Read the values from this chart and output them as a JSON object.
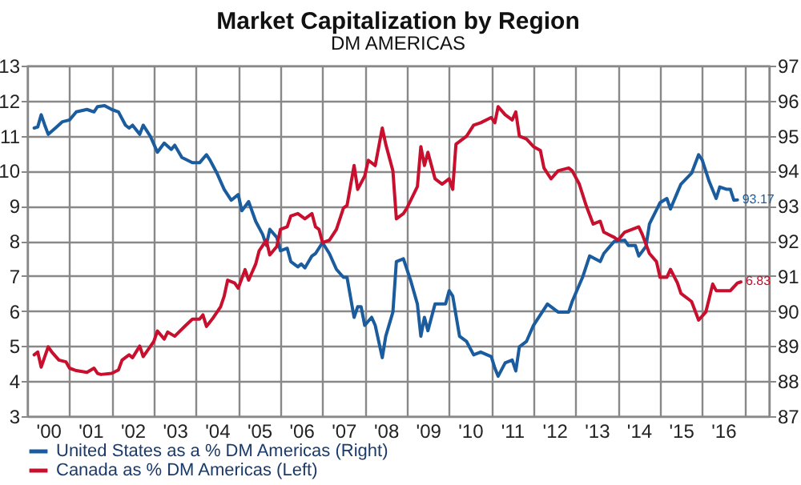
{
  "chart_data": {
    "type": "line",
    "title": "Market Capitalization by Region",
    "subtitle": "DM AMERICAS",
    "xlim": [
      "2000-01",
      "2017-08"
    ],
    "xticks": [
      {
        "value": "2000-07",
        "label": "'00"
      },
      {
        "value": "2001-07",
        "label": "'01"
      },
      {
        "value": "2002-07",
        "label": "'02"
      },
      {
        "value": "2003-07",
        "label": "'03"
      },
      {
        "value": "2004-07",
        "label": "'04"
      },
      {
        "value": "2005-07",
        "label": "'05"
      },
      {
        "value": "2006-07",
        "label": "'06"
      },
      {
        "value": "2007-07",
        "label": "'07"
      },
      {
        "value": "2008-07",
        "label": "'08"
      },
      {
        "value": "2009-07",
        "label": "'09"
      },
      {
        "value": "2010-07",
        "label": "'10"
      },
      {
        "value": "2011-07",
        "label": "'11"
      },
      {
        "value": "2012-07",
        "label": "'12"
      },
      {
        "value": "2013-07",
        "label": "'13"
      },
      {
        "value": "2014-07",
        "label": "'14"
      },
      {
        "value": "2015-07",
        "label": "'15"
      },
      {
        "value": "2016-07",
        "label": "'16"
      },
      {
        "value": "2001-01",
        "label": null
      },
      {
        "value": "2002-01",
        "label": null
      },
      {
        "value": "2003-01",
        "label": null
      },
      {
        "value": "2004-01",
        "label": null
      },
      {
        "value": "2005-01",
        "label": null
      },
      {
        "value": "2006-01",
        "label": null
      },
      {
        "value": "2007-01",
        "label": null
      },
      {
        "value": "2008-01",
        "label": null
      },
      {
        "value": "2009-01",
        "label": null
      },
      {
        "value": "2010-01",
        "label": null
      },
      {
        "value": "2011-01",
        "label": null
      },
      {
        "value": "2012-01",
        "label": null
      },
      {
        "value": "2013-01",
        "label": null
      },
      {
        "value": "2014-01",
        "label": null
      },
      {
        "value": "2015-01",
        "label": null
      },
      {
        "value": "2016-01",
        "label": null
      },
      {
        "value": "2017-01",
        "label": null
      }
    ],
    "ylim": [
      3,
      13
    ],
    "yticks": [
      3,
      4,
      5,
      6,
      7,
      8,
      9,
      10,
      11,
      12,
      13
    ],
    "y2lim": [
      87,
      97
    ],
    "y2ticks": [
      87,
      88,
      89,
      90,
      91,
      92,
      93,
      94,
      95,
      96,
      97
    ],
    "grid": true,
    "legend": "bottom",
    "series": [
      {
        "name": "United States as a % DM Americas  (Right)",
        "color": "#1a5c9e",
        "axis": "y2",
        "x": [
          "2000-03",
          "2000-04",
          "2000-05",
          "2000-06",
          "2000-07",
          "2000-09",
          "2000-11",
          "2001-01",
          "2001-03",
          "2001-06",
          "2001-08",
          "2001-09",
          "2001-11",
          "2002-01",
          "2002-03",
          "2002-05",
          "2002-06",
          "2002-07",
          "2002-09",
          "2002-10",
          "2002-12",
          "2003-02",
          "2003-04",
          "2003-06",
          "2003-07",
          "2003-09",
          "2003-12",
          "2004-02",
          "2004-04",
          "2004-05",
          "2004-07",
          "2004-09",
          "2004-11",
          "2005-01",
          "2005-02",
          "2005-04",
          "2005-06",
          "2005-08",
          "2005-09",
          "2005-10",
          "2005-12",
          "2006-01",
          "2006-03",
          "2006-04",
          "2006-06",
          "2006-07",
          "2006-08",
          "2006-10",
          "2006-11",
          "2007-01",
          "2007-03",
          "2007-05",
          "2007-07",
          "2007-08",
          "2007-10",
          "2007-11",
          "2007-12",
          "2008-01",
          "2008-03",
          "2008-04",
          "2008-06",
          "2008-07",
          "2008-09",
          "2008-10",
          "2008-12",
          "2009-02",
          "2009-04",
          "2009-05",
          "2009-06",
          "2009-07",
          "2009-09",
          "2009-12",
          "2010-01",
          "2010-02",
          "2010-04",
          "2010-06",
          "2010-08",
          "2010-10",
          "2011-01",
          "2011-02",
          "2011-03",
          "2011-05",
          "2011-07",
          "2011-08",
          "2011-09",
          "2011-11",
          "2012-01",
          "2012-03",
          "2012-05",
          "2012-08",
          "2012-11",
          "2012-12",
          "2013-03",
          "2013-05",
          "2013-08",
          "2013-09",
          "2013-12",
          "2014-03",
          "2014-04",
          "2014-06",
          "2014-07",
          "2014-09",
          "2014-10",
          "2015-01",
          "2015-03",
          "2015-04",
          "2015-06",
          "2015-07",
          "2015-10",
          "2015-12",
          "2016-01",
          "2016-03",
          "2016-05",
          "2016-06",
          "2016-08",
          "2016-09",
          "2016-10",
          "2016-11"
        ],
        "values": [
          95.22,
          95.25,
          95.6,
          95.3,
          95.04,
          95.22,
          95.4,
          95.45,
          95.68,
          95.75,
          95.68,
          95.83,
          95.86,
          95.75,
          95.68,
          95.3,
          95.22,
          95.3,
          95.04,
          95.3,
          94.99,
          94.53,
          94.79,
          94.61,
          94.73,
          94.38,
          94.23,
          94.23,
          94.46,
          94.31,
          93.93,
          93.47,
          93.16,
          93.32,
          92.86,
          93.12,
          92.56,
          92.18,
          91.87,
          92.33,
          92.1,
          91.72,
          91.79,
          91.41,
          91.26,
          91.34,
          91.23,
          91.57,
          91.64,
          91.95,
          91.64,
          91.19,
          90.96,
          90.96,
          89.82,
          90.12,
          90.12,
          89.59,
          89.82,
          89.59,
          88.67,
          89.28,
          89.97,
          91.41,
          91.49,
          90.88,
          90.2,
          89.28,
          89.82,
          89.44,
          90.2,
          90.2,
          90.58,
          90.43,
          89.28,
          89.13,
          88.75,
          88.83,
          88.7,
          88.37,
          88.14,
          88.52,
          88.6,
          88.29,
          88.98,
          89.13,
          89.59,
          89.89,
          90.2,
          89.97,
          89.97,
          90.27,
          90.96,
          91.57,
          91.41,
          91.64,
          91.99,
          92.02,
          91.87,
          91.87,
          91.57,
          91.84,
          92.48,
          93.09,
          93.21,
          92.91,
          93.39,
          93.62,
          93.93,
          94.46,
          94.31,
          93.7,
          93.21,
          93.54,
          93.47,
          93.47,
          93.16,
          93.17
        ],
        "value_labels": [
          null,
          null,
          null,
          null,
          null,
          null,
          null,
          null,
          null,
          null,
          null,
          null,
          null,
          null,
          null,
          null,
          null,
          null,
          null,
          null,
          null,
          null,
          null,
          null,
          null,
          null,
          null,
          null,
          null,
          null,
          null,
          null,
          null,
          null,
          null,
          null,
          null,
          null,
          null,
          null,
          null,
          null,
          null,
          null,
          null,
          null,
          null,
          null,
          null,
          null,
          null,
          null,
          null,
          null,
          null,
          null,
          null,
          null,
          null,
          null,
          null,
          null,
          null,
          null,
          null,
          null,
          null,
          null,
          null,
          null,
          null,
          null,
          null,
          null,
          null,
          null,
          null,
          null,
          null,
          null,
          null,
          null,
          null,
          null,
          null,
          null,
          null,
          null,
          null,
          null,
          null,
          null,
          null,
          null,
          null,
          null,
          null,
          null,
          null,
          null,
          null,
          null,
          null,
          null,
          null,
          null,
          null,
          null,
          null,
          null,
          null,
          null,
          null,
          null,
          null,
          null,
          null,
          "93.17"
        ]
      },
      {
        "name": "Canada as % DM Americas  (Left)",
        "color": "#c8102e",
        "x": [
          "2000-03",
          "2000-04",
          "2000-05",
          "2000-06",
          "2000-07",
          "2000-08",
          "2000-10",
          "2000-12",
          "2001-01",
          "2001-03",
          "2001-06",
          "2001-08",
          "2001-09",
          "2001-10",
          "2002-01",
          "2002-03",
          "2002-04",
          "2002-06",
          "2002-07",
          "2002-09",
          "2002-10",
          "2003-01",
          "2003-02",
          "2003-04",
          "2003-05",
          "2003-07",
          "2003-10",
          "2003-12",
          "2004-02",
          "2004-03",
          "2004-04",
          "2004-06",
          "2004-08",
          "2004-09",
          "2004-10",
          "2004-12",
          "2005-01",
          "2005-03",
          "2005-04",
          "2005-06",
          "2005-07",
          "2005-09",
          "2005-10",
          "2005-12",
          "2006-01",
          "2006-03",
          "2006-04",
          "2006-06",
          "2006-08",
          "2006-10",
          "2006-11",
          "2006-12",
          "2007-01",
          "2007-03",
          "2007-05",
          "2007-07",
          "2007-08",
          "2007-10",
          "2007-11",
          "2008-01",
          "2008-02",
          "2008-04",
          "2008-06",
          "2008-07",
          "2008-09",
          "2008-10",
          "2008-12",
          "2009-01",
          "2009-04",
          "2009-05",
          "2009-06",
          "2009-07",
          "2009-09",
          "2009-11",
          "2010-01",
          "2010-02",
          "2010-03",
          "2010-06",
          "2010-08",
          "2010-10",
          "2011-01",
          "2011-02",
          "2011-03",
          "2011-05",
          "2011-07",
          "2011-08",
          "2011-09",
          "2011-11",
          "2012-01",
          "2012-03",
          "2012-04",
          "2012-06",
          "2012-08",
          "2012-11",
          "2012-12",
          "2013-02",
          "2013-04",
          "2013-06",
          "2013-08",
          "2013-09",
          "2013-12",
          "2014-01",
          "2014-03",
          "2014-07",
          "2014-08",
          "2014-10",
          "2014-12",
          "2015-01",
          "2015-03",
          "2015-04",
          "2015-06",
          "2015-07",
          "2015-10",
          "2015-12",
          "2016-02",
          "2016-03",
          "2016-04",
          "2016-05",
          "2016-08",
          "2016-09",
          "2016-11",
          "2016-12"
        ],
        "values": [
          4.75,
          4.83,
          4.4,
          4.7,
          4.98,
          4.83,
          4.6,
          4.55,
          4.37,
          4.3,
          4.25,
          4.37,
          4.22,
          4.19,
          4.22,
          4.32,
          4.6,
          4.75,
          4.67,
          5.0,
          4.7,
          5.13,
          5.43,
          5.2,
          5.4,
          5.28,
          5.58,
          5.77,
          5.77,
          5.89,
          5.56,
          5.82,
          6.12,
          6.42,
          6.88,
          6.8,
          6.65,
          7.18,
          6.88,
          7.34,
          7.72,
          8.02,
          7.6,
          7.84,
          8.33,
          8.4,
          8.71,
          8.78,
          8.63,
          8.78,
          8.4,
          8.33,
          7.95,
          8.02,
          8.33,
          8.94,
          9.01,
          10.15,
          9.47,
          9.85,
          10.3,
          10.15,
          11.22,
          10.76,
          10.0,
          8.63,
          8.78,
          8.94,
          9.55,
          10.69,
          10.15,
          10.53,
          9.77,
          9.62,
          9.77,
          9.47,
          10.76,
          10.99,
          11.3,
          11.37,
          11.52,
          11.37,
          11.83,
          11.6,
          11.45,
          11.68,
          10.99,
          10.91,
          10.69,
          10.58,
          10.08,
          9.77,
          10.0,
          10.08,
          10.0,
          9.62,
          9.01,
          8.48,
          8.56,
          8.25,
          8.1,
          8.02,
          8.25,
          8.4,
          8.18,
          7.64,
          7.41,
          6.96,
          6.96,
          7.19,
          6.8,
          6.5,
          6.27,
          5.74,
          5.97,
          6.35,
          6.77,
          6.58,
          6.58,
          6.58,
          6.8,
          6.83
        ],
        "value_labels": [
          null,
          null,
          null,
          null,
          null,
          null,
          null,
          null,
          null,
          null,
          null,
          null,
          null,
          null,
          null,
          null,
          null,
          null,
          null,
          null,
          null,
          null,
          null,
          null,
          null,
          null,
          null,
          null,
          null,
          null,
          null,
          null,
          null,
          null,
          null,
          null,
          null,
          null,
          null,
          null,
          null,
          null,
          null,
          null,
          null,
          null,
          null,
          null,
          null,
          null,
          null,
          null,
          null,
          null,
          null,
          null,
          null,
          null,
          null,
          null,
          null,
          null,
          null,
          null,
          null,
          null,
          null,
          null,
          null,
          null,
          null,
          null,
          null,
          null,
          null,
          null,
          null,
          null,
          null,
          null,
          null,
          null,
          null,
          null,
          null,
          null,
          null,
          null,
          null,
          null,
          null,
          null,
          null,
          null,
          null,
          null,
          null,
          null,
          null,
          null,
          null,
          null,
          null,
          null,
          null,
          null,
          null,
          null,
          null,
          null,
          null,
          null,
          null,
          null,
          null,
          null,
          null,
          null,
          null,
          null,
          null,
          "6.83"
        ]
      }
    ]
  }
}
